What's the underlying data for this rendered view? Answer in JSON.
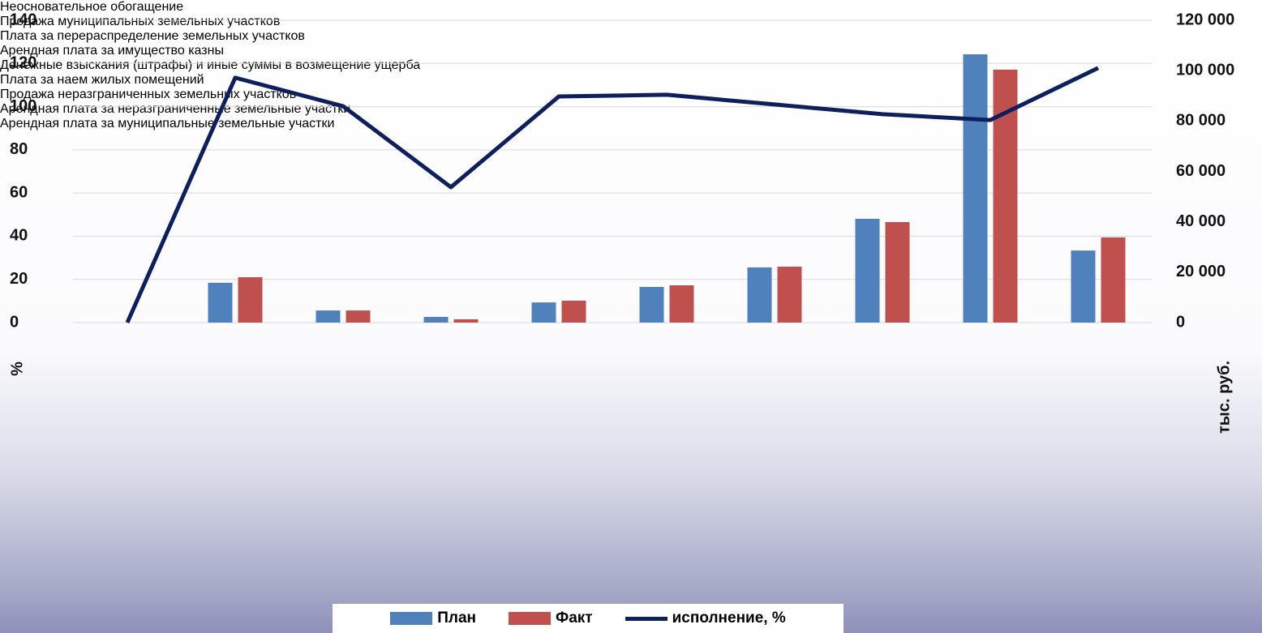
{
  "chart_data": {
    "type": "bar-line",
    "categories": [
      null,
      "Неосновательное обогащение",
      "Продажа муниципальных земельных участков",
      "Плата за перераспределение земельных участков",
      "Арендная плата за имущество казны",
      "Денежные взыскания (штрафы) и иные суммы в возмещение ущерба",
      "Плата за наем жилых помещений",
      "Продажа неразграниченных земельных участков",
      "Арендная плата за неразграниченные земельные участки",
      "Арендная плата за муниципальные земельные участки"
    ],
    "series": [
      {
        "name": "План",
        "color": "#4f81bd",
        "type": "bar",
        "axis": "y2",
        "values": [
          null,
          15800,
          4800,
          2250,
          8000,
          14150,
          21900,
          41200,
          106500,
          28600
        ]
      },
      {
        "name": "Факт",
        "color": "#c0504d",
        "type": "bar",
        "axis": "y2",
        "values": [
          null,
          18000,
          4800,
          1300,
          8700,
          14800,
          22200,
          39900,
          100400,
          33800
        ]
      },
      {
        "name": "исполнение, %",
        "color": "#0d1f5c",
        "type": "line",
        "axis": "y",
        "values": [
          0,
          113.4,
          100.2,
          62.7,
          104.7,
          105.5,
          101,
          96.5,
          93.8,
          117.9
        ]
      }
    ],
    "y_label": "%",
    "y2_label": "тыс. руб.",
    "ylim": [
      0,
      140
    ],
    "yticks": [
      0,
      20,
      40,
      60,
      80,
      100,
      120,
      140
    ],
    "y2lim": [
      0,
      120000
    ],
    "y2ticks": [
      {
        "value": 0,
        "label": "0"
      },
      {
        "value": 20000,
        "label": "20 000"
      },
      {
        "value": 40000,
        "label": "40 000"
      },
      {
        "value": 60000,
        "label": "60 000"
      },
      {
        "value": 80000,
        "label": "80 000"
      },
      {
        "value": 100000,
        "label": "100 000"
      },
      {
        "value": 120000,
        "label": "120 000"
      }
    ],
    "grid": true,
    "legend": "bottom"
  }
}
